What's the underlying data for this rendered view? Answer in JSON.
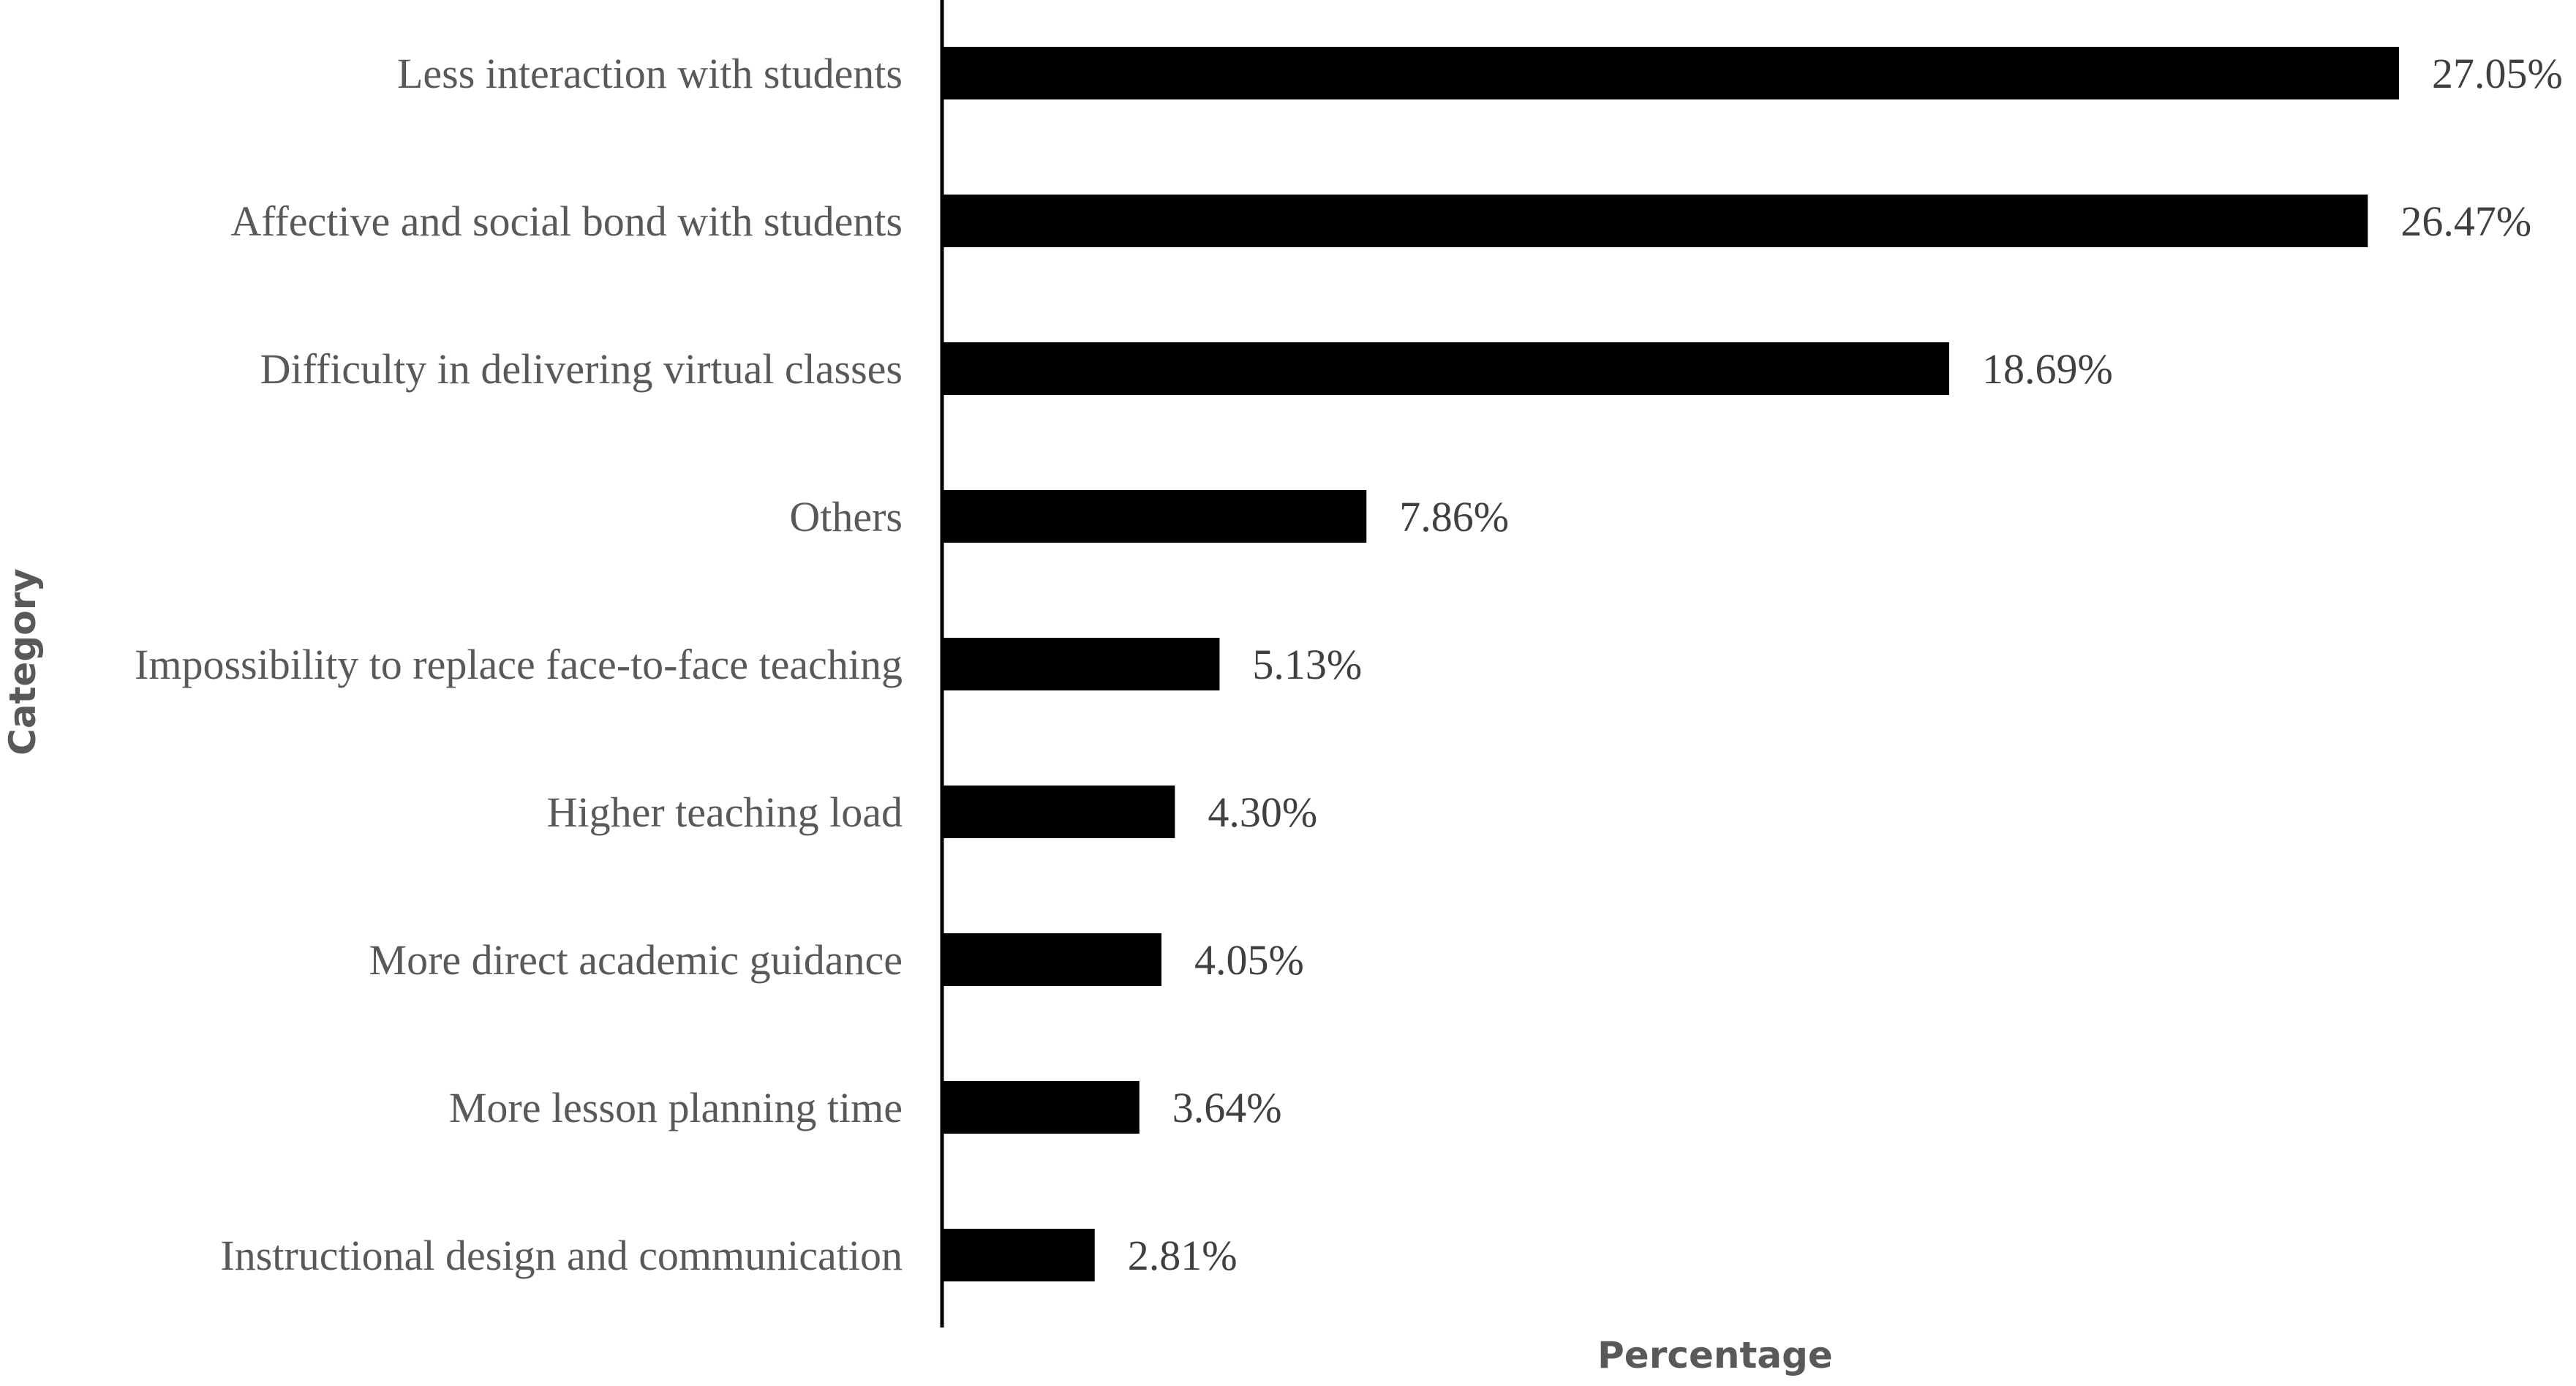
{
  "chart_data": {
    "type": "bar",
    "orientation": "horizontal",
    "title": "",
    "xlabel": "Percentage",
    "ylabel": "Category",
    "categories": [
      "Less interaction with students",
      "Affective and social bond with students",
      "Difficulty in delivering virtual classes",
      "Others",
      "Impossibility to replace face-to-face teaching",
      "Higher teaching load",
      "More direct academic guidance",
      "More lesson planning time",
      "Instructional design and communication"
    ],
    "values": [
      27.05,
      26.47,
      18.69,
      7.86,
      5.13,
      4.3,
      4.05,
      3.64,
      2.81
    ],
    "value_labels": [
      "27.05%",
      "26.47%",
      "18.69%",
      "7.86%",
      "5.13%",
      "4.30%",
      "4.05%",
      "3.64%",
      "2.81%"
    ],
    "xlim": [
      0,
      30
    ],
    "grid": false,
    "legend": "none",
    "bar_color": "#000000",
    "axis_color": "#000000",
    "label_color": "#595959"
  }
}
